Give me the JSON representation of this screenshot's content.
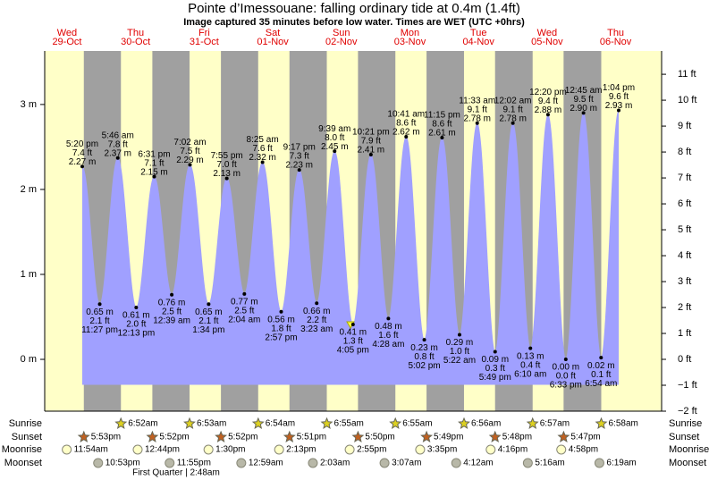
{
  "chart_data": {
    "type": "tide",
    "title": "Pointe d’Imessouane: falling  ordinary tide at 0.4m (1.4ft)",
    "subtitle": "Image captured 35 minutes before low water. Times are WET (UTC +0hrs)",
    "day_names": [
      "Wed",
      "Thu",
      "Fri",
      "Sat",
      "Sun",
      "Mon",
      "Tue",
      "Wed",
      "Thu"
    ],
    "dates": [
      "29-Oct",
      "30-Oct",
      "31-Oct",
      "01-Nov",
      "02-Nov",
      "03-Nov",
      "04-Nov",
      "05-Nov",
      "06-Nov"
    ],
    "tides": {
      "times": [
        "5:20 pm",
        "11:27 pm",
        "5:46 am",
        "12:13 pm",
        "6:31 pm",
        "12:39 am",
        "7:02 am",
        "1:34 pm",
        "7:55 pm",
        "2:04 am",
        "8:25 am",
        "2:57 pm",
        "9:17 pm",
        "3:23 am",
        "9:39 am",
        "4:05 pm",
        "10:21 pm",
        "4:28 am",
        "10:41 am",
        "5:02 pm",
        "11:15 pm",
        "5:22 am",
        "11:33 am",
        "5:49 pm",
        "12:02 am",
        "6:10 am",
        "12:20 pm",
        "6:33 pm",
        "12:45 am",
        "6:54 am",
        "1:04 pm"
      ],
      "values": [
        2.27,
        0.65,
        2.37,
        0.61,
        2.15,
        0.76,
        2.29,
        0.65,
        2.13,
        0.77,
        2.32,
        0.56,
        2.23,
        0.66,
        2.45,
        0.41,
        2.41,
        0.48,
        2.62,
        0.23,
        2.61,
        0.29,
        2.78,
        0.09,
        2.78,
        0.13,
        2.88,
        0.0,
        2.9,
        0.02,
        2.93
      ],
      "value_labels": [
        "2.27 m",
        "0.65 m",
        "2.37 m",
        "0.61 m",
        "2.15 m",
        "0.76 m",
        "2.29 m",
        "0.65 m",
        "2.13 m",
        "0.77 m",
        "2.32 m",
        "0.56 m",
        "2.23 m",
        "0.66 m",
        "2.45 m",
        "0.41 m",
        "2.41 m",
        "0.48 m",
        "2.62 m",
        "0.23 m",
        "2.61 m",
        "0.29 m",
        "2.78 m",
        "0.09 m",
        "2.78 m",
        "0.13 m",
        "2.88 m",
        "0.00 m",
        "2.90 m",
        "0.02 m",
        "2.93 m"
      ],
      "feet": [
        7.4,
        2.1,
        7.8,
        2.0,
        7.1,
        2.5,
        7.5,
        2.1,
        7.0,
        2.5,
        7.6,
        1.8,
        7.3,
        2.2,
        8.0,
        1.3,
        7.9,
        1.6,
        8.6,
        0.8,
        8.6,
        1.0,
        9.1,
        0.3,
        9.1,
        0.4,
        9.4,
        0.0,
        9.5,
        0.1,
        9.6
      ],
      "feet_labels": [
        "7.4 ft",
        "2.1 ft",
        "7.8 ft",
        "2.0 ft",
        "7.1 ft",
        "2.5 ft",
        "7.5 ft",
        "2.1 ft",
        "7.0 ft",
        "2.5 ft",
        "7.6 ft",
        "1.8 ft",
        "7.3 ft",
        "2.2 ft",
        "8.0 ft",
        "1.3 ft",
        "7.9 ft",
        "1.6 ft",
        "8.6 ft",
        "0.8 ft",
        "8.6 ft",
        "1.0 ft",
        "9.1 ft",
        "0.3 ft",
        "9.1 ft",
        "0.4 ft",
        "9.4 ft",
        "0.0 ft",
        "9.5 ft",
        "0.1 ft",
        "9.6 ft"
      ]
    },
    "ylim": [
      -0.61,
      3.63
    ],
    "yticks": [
      {
        "value": 0,
        "label": "0 m"
      },
      {
        "value": 1,
        "label": "1 m"
      },
      {
        "value": 2,
        "label": "2 m"
      },
      {
        "value": 3,
        "label": "3 m"
      }
    ],
    "y2lim": [
      -2,
      11.9
    ],
    "y2ticks": [
      {
        "value": -2,
        "label": "−2 ft"
      },
      {
        "value": -1,
        "label": "−1 ft"
      },
      {
        "value": 0,
        "label": "0 ft"
      },
      {
        "value": 1,
        "label": "1 ft"
      },
      {
        "value": 2,
        "label": "2 ft"
      },
      {
        "value": 3,
        "label": "3 ft"
      },
      {
        "value": 4,
        "label": "4 ft"
      },
      {
        "value": 5,
        "label": "5 ft"
      },
      {
        "value": 6,
        "label": "6 ft"
      },
      {
        "value": 7,
        "label": "7 ft"
      },
      {
        "value": 8,
        "label": "8 ft"
      },
      {
        "value": 9,
        "label": "9 ft"
      },
      {
        "value": 10,
        "label": "10 ft"
      },
      {
        "value": 11,
        "label": "11 ft"
      }
    ],
    "fill_color": "#a0a0ff",
    "day_color": "#ffffc8",
    "night_color": "#a0a0a0",
    "astro": [
      {
        "name": "Sunrise",
        "times": [
          null,
          "6:52am",
          "6:53am",
          "6:54am",
          "6:55am",
          "6:55am",
          "6:56am",
          "6:57am",
          "6:58am"
        ]
      },
      {
        "name": "Sunset",
        "times": [
          "5:53pm",
          "5:52pm",
          "5:52pm",
          "5:51pm",
          "5:50pm",
          "5:49pm",
          "5:48pm",
          "5:47pm",
          null
        ]
      },
      {
        "name": "Moonrise",
        "times": [
          "11:54am",
          "12:44pm",
          "1:30pm",
          "2:13pm",
          "2:55pm",
          "3:35pm",
          "4:16pm",
          "4:58pm",
          null
        ]
      },
      {
        "name": "Moonset",
        "times": [
          "10:53pm",
          "11:55pm",
          null,
          "12:59am",
          "2:03am",
          "3:07am",
          "4:12am",
          "5:16am",
          "6:19am"
        ]
      }
    ],
    "moon_phase": "First Quarter | 2:48am"
  }
}
